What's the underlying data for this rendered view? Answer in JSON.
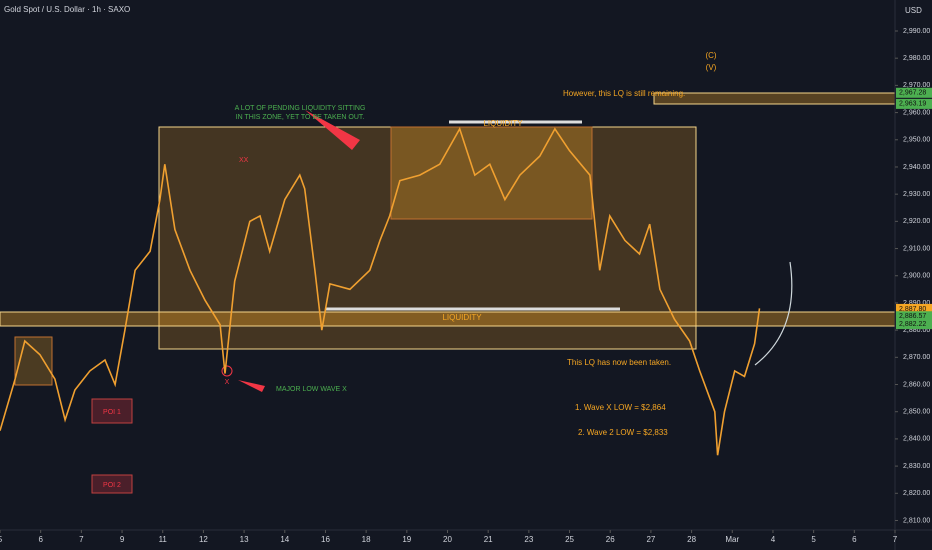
{
  "chart_data": {
    "type": "line",
    "title": "Gold Spot / U.S. Dollar · 1h · SAXO",
    "currency": "USD",
    "x": [
      0,
      0.37,
      0.61,
      0.98,
      1.35,
      1.6,
      1.84,
      2.21,
      2.58,
      2.83,
      3.07,
      3.32,
      3.69,
      3.93,
      4.05,
      4.3,
      4.67,
      5.04,
      5.41,
      5.53,
      5.77,
      6.14,
      6.39,
      6.63,
      7.0,
      7.37,
      7.49,
      7.74,
      7.91,
      8.11,
      8.6,
      9.09,
      9.34,
      9.58,
      9.83,
      10.32,
      10.81,
      11.3,
      11.67,
      12.04,
      12.41,
      12.78,
      13.27,
      13.64,
      14.0,
      14.5,
      14.74,
      14.99,
      15.36,
      15.72,
      15.97,
      16.22,
      16.58,
      16.95,
      17.2,
      17.57,
      17.64,
      17.81,
      18.06,
      18.3,
      18.55,
      18.67
    ],
    "series": [
      {
        "name": "XAUUSD",
        "color": "#f0a030",
        "values": [
          2843,
          2862,
          2876,
          2871,
          2862,
          2847,
          2858,
          2865,
          2869,
          2860,
          2880,
          2902,
          2909,
          2928,
          2941,
          2917,
          2902,
          2891,
          2882,
          2864,
          2898,
          2920,
          2922,
          2909,
          2928,
          2937,
          2932,
          2902,
          2880,
          2897,
          2895,
          2902,
          2913,
          2922,
          2935,
          2937,
          2941,
          2954,
          2937,
          2941,
          2928,
          2937,
          2944,
          2954,
          2946,
          2937,
          2902,
          2922,
          2913,
          2908,
          2919,
          2895,
          2884,
          2876,
          2865,
          2850,
          2834,
          2850,
          2865,
          2863,
          2875,
          2888
        ]
      }
    ],
    "xlim": [
      0,
      22
    ],
    "xticks": [
      {
        "value": 0,
        "label": "5"
      },
      {
        "value": 1,
        "label": "6"
      },
      {
        "value": 2,
        "label": "7"
      },
      {
        "value": 3,
        "label": "9"
      },
      {
        "value": 4,
        "label": "11"
      },
      {
        "value": 5,
        "label": "12"
      },
      {
        "value": 6,
        "label": "13"
      },
      {
        "value": 7,
        "label": "14"
      },
      {
        "value": 8,
        "label": "16"
      },
      {
        "value": 9,
        "label": "18"
      },
      {
        "value": 10,
        "label": "19"
      },
      {
        "value": 11,
        "label": "20"
      },
      {
        "value": 12,
        "label": "21"
      },
      {
        "value": 13,
        "label": "23"
      },
      {
        "value": 14,
        "label": "25"
      },
      {
        "value": 15,
        "label": "26"
      },
      {
        "value": 16,
        "label": "27"
      },
      {
        "value": 17,
        "label": "28"
      },
      {
        "value": 18,
        "label": "Mar"
      },
      {
        "value": 19,
        "label": "4"
      },
      {
        "value": 20,
        "label": "5"
      },
      {
        "value": 21,
        "label": "6"
      },
      {
        "value": 22,
        "label": "7"
      }
    ],
    "ylim": [
      2806.5,
      3001.4
    ],
    "yticks": [
      {
        "value": 2810,
        "label": "2,810.00"
      },
      {
        "value": 2820,
        "label": "2,820.00"
      },
      {
        "value": 2830,
        "label": "2,830.00"
      },
      {
        "value": 2840,
        "label": "2,840.00"
      },
      {
        "value": 2850,
        "label": "2,850.00"
      },
      {
        "value": 2860,
        "label": "2,860.00"
      },
      {
        "value": 2870,
        "label": "2,870.00"
      },
      {
        "value": 2880,
        "label": "2,880.00"
      },
      {
        "value": 2890,
        "label": "2,890.00"
      },
      {
        "value": 2900,
        "label": "2,900.00"
      },
      {
        "value": 2910,
        "label": "2,910.00"
      },
      {
        "value": 2920,
        "label": "2,920.00"
      },
      {
        "value": 2930,
        "label": "2,930.00"
      },
      {
        "value": 2940,
        "label": "2,940.00"
      },
      {
        "value": 2950,
        "label": "2,950.00"
      },
      {
        "value": 2960,
        "label": "2,960.00"
      },
      {
        "value": 2970,
        "label": "2,970.00"
      },
      {
        "value": 2980,
        "label": "2,980.00"
      },
      {
        "value": 2990,
        "label": "2,990.00"
      }
    ],
    "price_labels": [
      {
        "value": 2967.28,
        "label": "2,967.28",
        "color": "#4caf50"
      },
      {
        "value": 2963.19,
        "label": "2,963.19",
        "color": "#4caf50"
      },
      {
        "value": 2887.8,
        "label": "2,887.80",
        "color": "#f5a623"
      },
      {
        "value": 2886.57,
        "label": "2,886.57",
        "color": "#4caf50"
      },
      {
        "value": 2882.22,
        "label": "2,882.22",
        "color": "#4caf50"
      }
    ],
    "countdown": "57:40",
    "annotations": {
      "pending": "A LOT OF PENDING LIQUIDITY SITTING",
      "pending2": "IN THIS ZONE, YET TO BE TAKEN OUT.",
      "remaining": "However, this LQ is still remaining.",
      "liq_top": "LIQUIDITY",
      "liq_mid": "LIQUIDITY",
      "taken": "This LQ has now been taken.",
      "major_low": "MAJOR LOW WAVE X",
      "wave_x": "1. Wave X LOW = $2,864",
      "wave_2": "2. Wave 2 LOW = $2,833",
      "poi1": "POI 1",
      "poi2": "POI 2",
      "x": "X",
      "xx": "XX",
      "c": "(C)",
      "v": "(V)"
    }
  }
}
